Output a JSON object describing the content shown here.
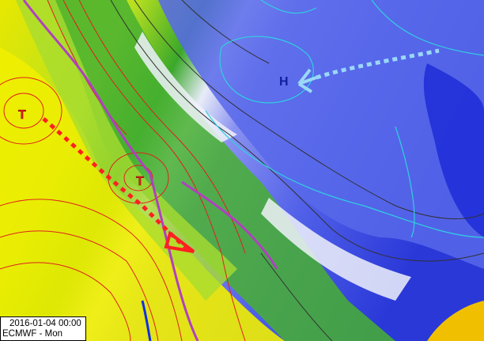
{
  "map": {
    "valid_time": "2016-01-04 00:00",
    "model_label": "ECMWF - Mon",
    "pressure_centers": [
      {
        "type": "low",
        "symbol": "T"
      },
      {
        "type": "low",
        "symbol": "T"
      },
      {
        "type": "high",
        "symbol": "H"
      }
    ],
    "colors": {
      "warm_yellow": "#f5f000",
      "light_green": "#9ed83a",
      "green": "#3aa82a",
      "cold_blue": "#5060e8",
      "deep_blue": "#2030d8",
      "isobar_warm": "#e02020",
      "isobar_cold": "#30d0e0",
      "occluded_front": "#b040c0",
      "trough": "#ff2020",
      "cold_front": "#1030e0"
    }
  }
}
